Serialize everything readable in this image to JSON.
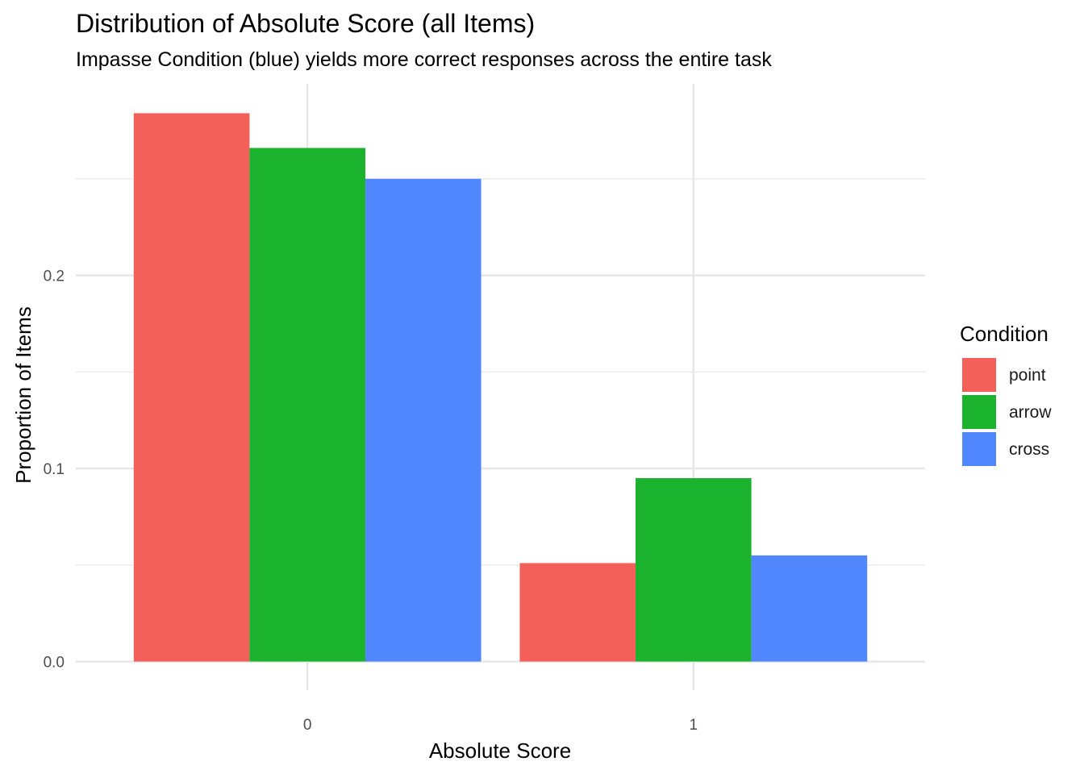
{
  "chart_data": {
    "type": "bar",
    "title": "Distribution of Absolute Score (all Items)",
    "subtitle": "Impasse Condition (blue) yields more correct responses across the entire task",
    "xlabel": "Absolute Score",
    "ylabel": "Proportion of Items",
    "categories": [
      "0",
      "1"
    ],
    "series": [
      {
        "name": "point",
        "color": "#F26059",
        "values": [
          0.284,
          0.051
        ]
      },
      {
        "name": "arrow",
        "color": "#1BB22E",
        "values": [
          0.266,
          0.095
        ]
      },
      {
        "name": "cross",
        "color": "#5087FE",
        "values": [
          0.25,
          0.055
        ]
      }
    ],
    "ylim": [
      -0.0148,
      0.2992
    ],
    "yticks": [
      0.0,
      0.1,
      0.2
    ],
    "ytick_labels": [
      "0.0",
      "0.1",
      "0.2"
    ],
    "y_minor_ticks": [
      0.05,
      0.15,
      0.25
    ],
    "grid": true,
    "legend": {
      "title": "Condition",
      "position": "right"
    }
  }
}
